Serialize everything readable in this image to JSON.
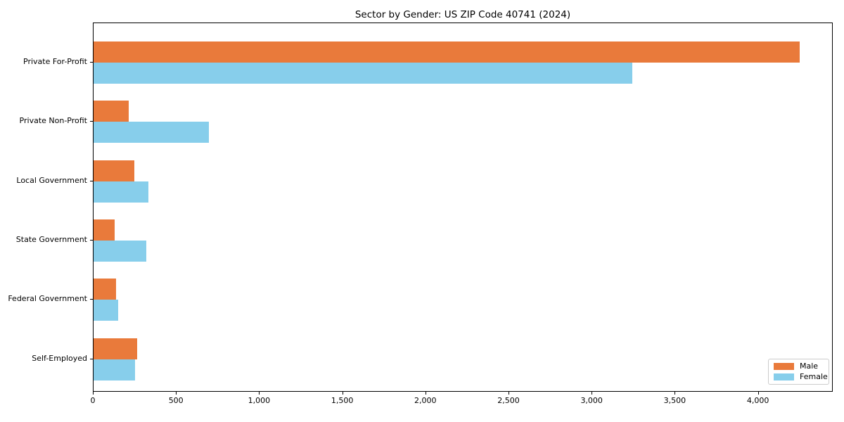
{
  "title": "Sector by Gender: US ZIP Code 40741 (2024)",
  "colors": {
    "male": "#E97A3B",
    "female": "#87CEEB",
    "frame": "#000000",
    "legend_border": "#cccccc",
    "background": "#ffffff"
  },
  "legend": {
    "position": "lower right",
    "entries": [
      "Male",
      "Female"
    ]
  },
  "chart_data": {
    "type": "bar",
    "orientation": "horizontal",
    "title": "Sector by Gender: US ZIP Code 40741 (2024)",
    "categories": [
      "Private For-Profit",
      "Private Non-Profit",
      "Local Government",
      "State Government",
      "Federal Government",
      "Self-Employed"
    ],
    "series": [
      {
        "name": "Male",
        "color": "#E97A3B",
        "values": [
          4245,
          210,
          247,
          128,
          137,
          262
        ]
      },
      {
        "name": "Female",
        "color": "#87CEEB",
        "values": [
          3240,
          693,
          330,
          319,
          147,
          250
        ]
      }
    ],
    "xlabel": "",
    "ylabel": "",
    "xlim": [
      0,
      4450
    ],
    "xticks": [
      0,
      500,
      1000,
      1500,
      2000,
      2500,
      3000,
      3500,
      4000
    ],
    "xtick_labels": [
      "0",
      "500",
      "1,000",
      "1,500",
      "2,000",
      "2,500",
      "3,000",
      "3,500",
      "4,000"
    ],
    "grid": false,
    "legend_position": "lower right"
  }
}
